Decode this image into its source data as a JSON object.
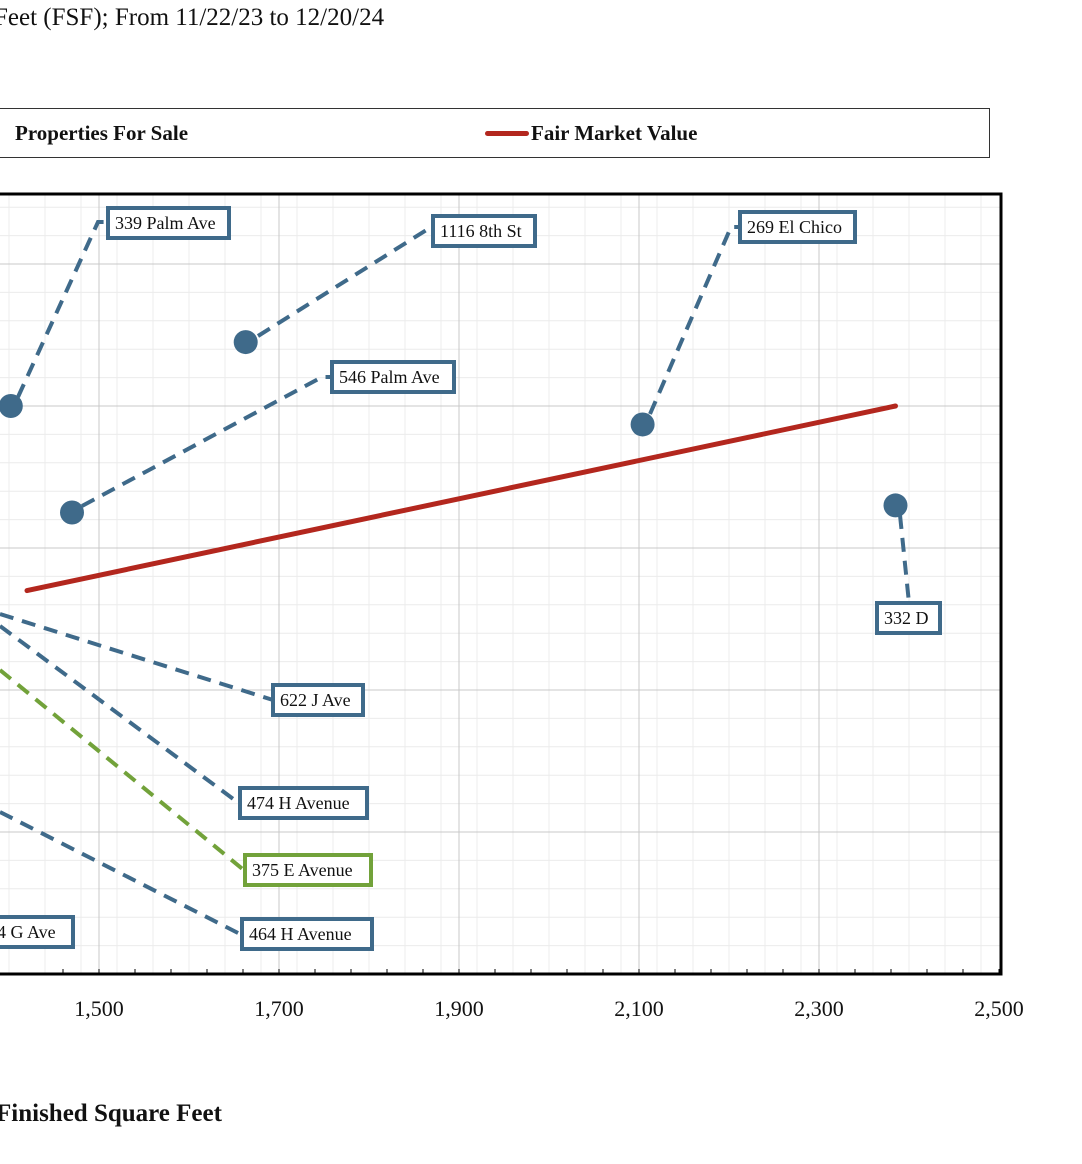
{
  "page": {
    "subtitle": "Feet (FSF); From 11/22/23 to 12/20/24",
    "xlabel": "Finished Square Feet"
  },
  "legend": {
    "sale_label": "Properties For Sale",
    "fmv_label": "Fair Market Value"
  },
  "colors": {
    "point": "#3f6a8a",
    "highlight": "#72a23a",
    "fmv": "#b3271e",
    "grid_major": "#c8c8c8",
    "grid_minor": "#ececec",
    "frame": "#000000"
  },
  "chart_data": {
    "type": "scatter",
    "title": "",
    "xlabel": "Finished Square Feet",
    "ylabel": "",
    "x_ticks": [
      "1,500",
      "1,700",
      "1,900",
      "2,100",
      "2,300",
      "2,500"
    ],
    "xlim": [
      1420,
      2500
    ],
    "ylim": [
      0,
      5.5
    ],
    "grid": true,
    "legend_position": "top",
    "series": [
      {
        "name": "Properties For Sale",
        "points": [
          {
            "label": "339 Palm Ave",
            "x": 1402,
            "y": 4.0
          },
          {
            "label": "1116 8th St",
            "x": 1663,
            "y": 4.45
          },
          {
            "label": "546 Palm Ave",
            "x": 1470,
            "y": 3.25
          },
          {
            "label": "269 El Chico",
            "x": 2104,
            "y": 3.87
          },
          {
            "label": "332 D",
            "x": 2385,
            "y": 3.3
          },
          {
            "label": "622 J Ave"
          },
          {
            "label": "474 H Avenue"
          },
          {
            "label": "375 E Avenue",
            "highlight": true
          },
          {
            "label": "464 H Avenue"
          },
          {
            "label": "4 G Ave"
          }
        ]
      },
      {
        "name": "Fair Market Value",
        "type": "line",
        "points": [
          {
            "x": 1420,
            "y": 2.7
          },
          {
            "x": 2385,
            "y": 4.0
          }
        ]
      }
    ]
  }
}
